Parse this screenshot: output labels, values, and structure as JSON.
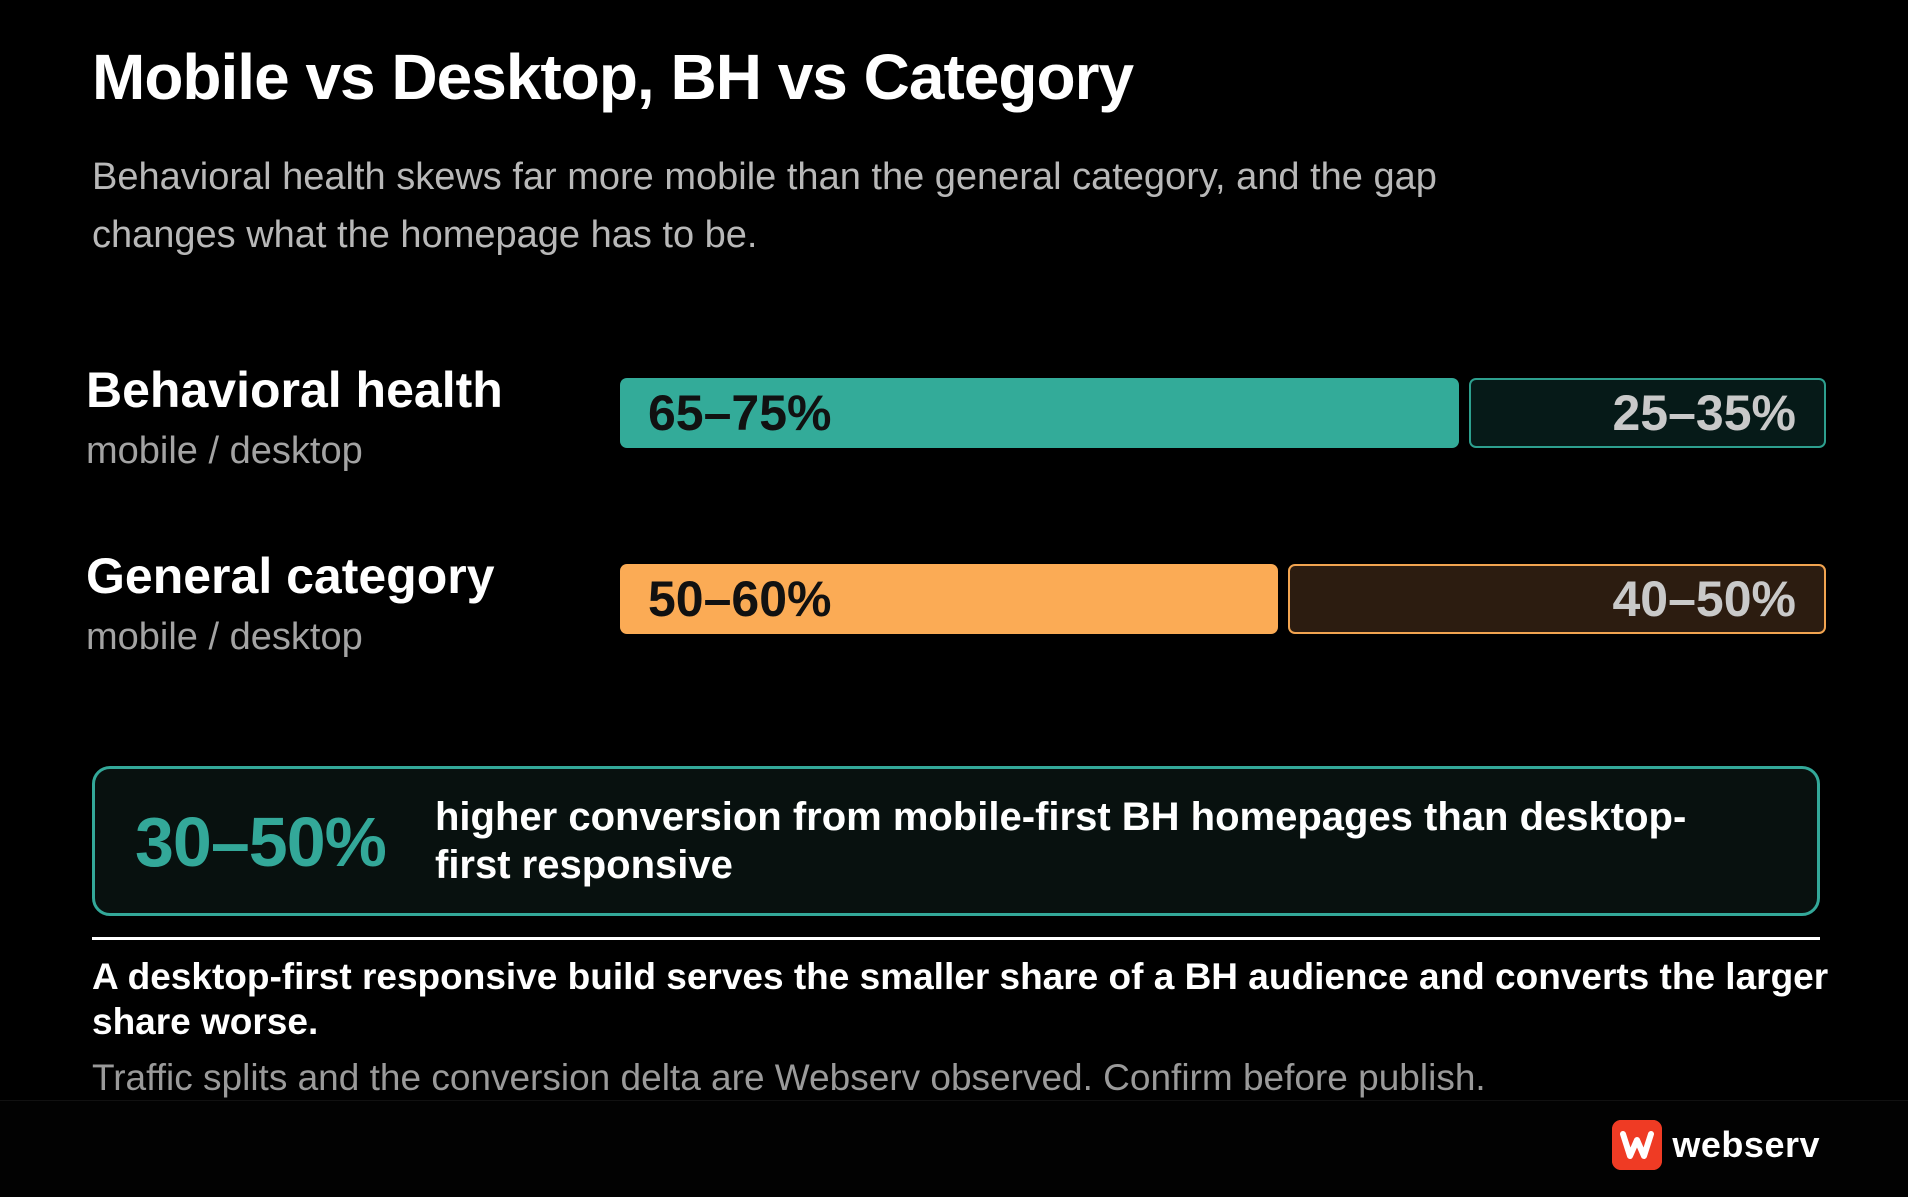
{
  "title": "Mobile vs Desktop, BH vs Category",
  "subtitle": "Behavioral health skews far more mobile than the general category, and the gap changes what the homepage has to be.",
  "colors": {
    "bh_mobile": "#33ab99",
    "bh_desktop_fill": "#061a18",
    "bh_desktop_border": "#2d9f8e",
    "cat_mobile": "#fbab55",
    "cat_desktop_fill": "#2c1c10",
    "cat_desktop_border": "#f2a450",
    "callout_accent": "#33a899"
  },
  "chart_data": {
    "type": "bar",
    "orientation": "horizontal",
    "stacked": true,
    "categories": [
      "Behavioral health",
      "General category"
    ],
    "category_sublabels": [
      "mobile / desktop",
      "mobile / desktop"
    ],
    "series": [
      {
        "name": "mobile",
        "values": [
          [
            65,
            75
          ],
          [
            50,
            60
          ]
        ],
        "labels": [
          "65–75%",
          "50–60%"
        ]
      },
      {
        "name": "desktop",
        "values": [
          [
            25,
            35
          ],
          [
            40,
            50
          ]
        ],
        "labels": [
          "25–35%",
          "40–50%"
        ]
      }
    ],
    "unit": "%",
    "xlim": [
      0,
      100
    ],
    "grid": false,
    "legend": "none"
  },
  "rows": [
    {
      "name": "Behavioral health",
      "sub": "mobile / desktop",
      "mobile_label": "65–75%",
      "desktop_label": "25–35%",
      "mobile_share": 0.7
    },
    {
      "name": "General category",
      "sub": "mobile / desktop",
      "mobile_label": "50–60%",
      "desktop_label": "40–50%",
      "mobile_share": 0.55
    }
  ],
  "callout": {
    "number": "30–50%",
    "text": "higher conversion from mobile-first BH homepages than desktop-first responsive"
  },
  "takeaway": "A desktop-first responsive build serves the smaller share of a BH audience and converts the larger share worse.",
  "footnote": "Traffic splits and the conversion delta are Webserv observed. Confirm before publish.",
  "brand": {
    "name": "webserv",
    "icon": "webserv-logo-icon"
  }
}
